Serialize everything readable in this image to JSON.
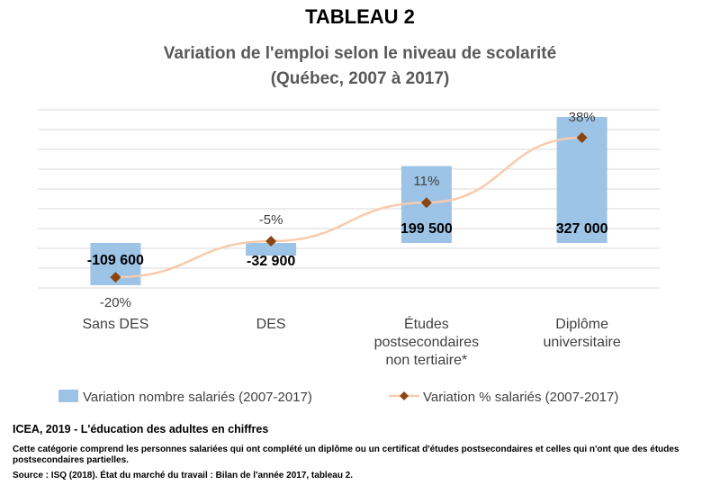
{
  "header": {
    "title": "TABLEAU 2",
    "subtitle_line1": "Variation de l'emploi selon le niveau de scolarité",
    "subtitle_line2": "(Québec, 2007 à 2017)"
  },
  "chart_data": {
    "type": "bar",
    "title": "Variation de l'emploi selon le niveau de scolarité",
    "subtitle": "(Québec, 2007 à 2017)",
    "categories": [
      [
        "Sans DES"
      ],
      [
        "DES"
      ],
      [
        "Études",
        "postsecondaires",
        "non tertiaire*"
      ],
      [
        "Diplôme",
        "universitaire"
      ]
    ],
    "series": [
      {
        "name": "Variation nombre salariés (2007-2017)",
        "kind": "bar",
        "values": [
          -109600,
          -32900,
          199500,
          327000
        ],
        "labels": [
          "-109 600",
          "-32 900",
          "199 500",
          "327 000"
        ],
        "color": "#9dc3e6"
      },
      {
        "name": "Variation % salariés (2007-2017)",
        "kind": "line",
        "values": [
          -20,
          -5,
          11,
          38
        ],
        "labels": [
          "-20%",
          "-5%",
          "11%",
          "38%"
        ],
        "color": "#8b4513",
        "line_color": "#f8cbad"
      }
    ],
    "bar_axis_range": [
      -200000,
      400000
    ],
    "pct_axis_range": [
      -30,
      45
    ],
    "grid": true,
    "legend_position": "bottom",
    "axes_labels_visible": false
  },
  "footer": {
    "title": "ICEA, 2019 - L'éducation des adultes en chiffres",
    "note": "Cette catégorie comprend les personnes salariées qui ont complété un diplôme ou un certificat d'études postsecondaires et celles qui n'ont que des études postsecondaires partielles.",
    "source": "Source : ISQ (2018). État du marché du travail : Bilan de l'année 2017, tableau 2."
  }
}
